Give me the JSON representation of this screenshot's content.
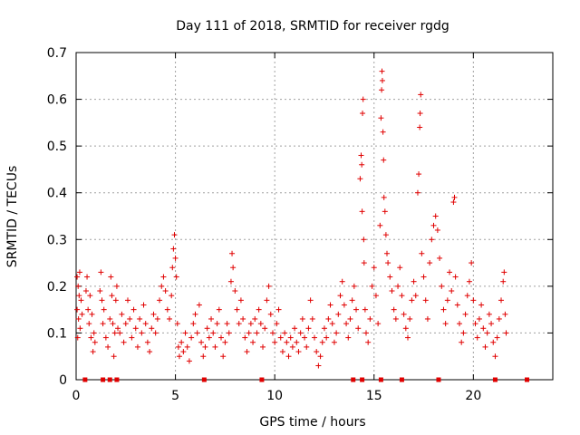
{
  "chart_data": {
    "type": "scatter",
    "title": "Day 111 of 2018, SRMTID for receiver rgdg",
    "xlabel": "GPS time / hours",
    "ylabel": "SRMTID / TECUs",
    "xlim": [
      0,
      24.0
    ],
    "ylim": [
      0,
      0.7
    ],
    "xticks": [
      0,
      5,
      10,
      15,
      20
    ],
    "xtick_labels": [
      "0",
      "5",
      "10",
      "15",
      "20"
    ],
    "yticks": [
      0,
      0.1,
      0.2,
      0.3,
      0.4,
      0.5,
      0.6,
      0.7
    ],
    "ytick_labels": [
      "0",
      "0.1",
      "0.2",
      "0.3",
      "0.4",
      "0.5",
      "0.6",
      "0.7"
    ],
    "grid": true,
    "marker": "+",
    "color": "#e00000",
    "series": [
      {
        "name": "SRMTID",
        "points": [
          [
            0.05,
            0.22
          ],
          [
            0.05,
            0.15
          ],
          [
            0.08,
            0.09
          ],
          [
            0.1,
            0.2
          ],
          [
            0.12,
            0.13
          ],
          [
            0.15,
            0.18
          ],
          [
            0.18,
            0.23
          ],
          [
            0.2,
            0.11
          ],
          [
            0.25,
            0.17
          ],
          [
            0.3,
            0.14
          ],
          [
            0.5,
            0.19
          ],
          [
            0.55,
            0.22
          ],
          [
            0.6,
            0.15
          ],
          [
            0.65,
            0.12
          ],
          [
            0.7,
            0.18
          ],
          [
            0.75,
            0.09
          ],
          [
            0.8,
            0.14
          ],
          [
            0.85,
            0.06
          ],
          [
            0.9,
            0.1
          ],
          [
            0.95,
            0.08
          ],
          [
            1.2,
            0.19
          ],
          [
            1.25,
            0.23
          ],
          [
            1.3,
            0.17
          ],
          [
            1.35,
            0.12
          ],
          [
            1.4,
            0.15
          ],
          [
            1.5,
            0.09
          ],
          [
            1.6,
            0.07
          ],
          [
            1.7,
            0.13
          ],
          [
            1.75,
            0.22
          ],
          [
            1.8,
            0.18
          ],
          [
            1.85,
            0.12
          ],
          [
            1.9,
            0.05
          ],
          [
            1.95,
            0.1
          ],
          [
            2.0,
            0.17
          ],
          [
            2.05,
            0.2
          ],
          [
            2.1,
            0.11
          ],
          [
            2.2,
            0.1
          ],
          [
            2.3,
            0.14
          ],
          [
            2.4,
            0.08
          ],
          [
            2.5,
            0.12
          ],
          [
            2.6,
            0.17
          ],
          [
            2.7,
            0.13
          ],
          [
            2.8,
            0.09
          ],
          [
            2.9,
            0.15
          ],
          [
            3.0,
            0.11
          ],
          [
            3.1,
            0.07
          ],
          [
            3.2,
            0.13
          ],
          [
            3.3,
            0.1
          ],
          [
            3.4,
            0.16
          ],
          [
            3.5,
            0.12
          ],
          [
            3.6,
            0.08
          ],
          [
            3.7,
            0.06
          ],
          [
            3.8,
            0.11
          ],
          [
            3.9,
            0.14
          ],
          [
            4.0,
            0.1
          ],
          [
            4.1,
            0.13
          ],
          [
            4.2,
            0.17
          ],
          [
            4.3,
            0.2
          ],
          [
            4.4,
            0.22
          ],
          [
            4.5,
            0.19
          ],
          [
            4.6,
            0.15
          ],
          [
            4.7,
            0.13
          ],
          [
            4.8,
            0.18
          ],
          [
            4.85,
            0.24
          ],
          [
            4.9,
            0.28
          ],
          [
            4.95,
            0.31
          ],
          [
            5.0,
            0.26
          ],
          [
            5.05,
            0.22
          ],
          [
            5.1,
            0.12
          ],
          [
            5.15,
            0.07
          ],
          [
            5.2,
            0.05
          ],
          [
            5.3,
            0.08
          ],
          [
            5.4,
            0.06
          ],
          [
            5.5,
            0.1
          ],
          [
            5.6,
            0.07
          ],
          [
            5.7,
            0.04
          ],
          [
            5.8,
            0.09
          ],
          [
            5.9,
            0.12
          ],
          [
            6.0,
            0.14
          ],
          [
            6.1,
            0.1
          ],
          [
            6.2,
            0.16
          ],
          [
            6.3,
            0.08
          ],
          [
            6.4,
            0.05
          ],
          [
            6.5,
            0.07
          ],
          [
            6.6,
            0.11
          ],
          [
            6.7,
            0.09
          ],
          [
            6.8,
            0.13
          ],
          [
            6.9,
            0.1
          ],
          [
            7.0,
            0.07
          ],
          [
            7.1,
            0.12
          ],
          [
            7.2,
            0.15
          ],
          [
            7.3,
            0.09
          ],
          [
            7.4,
            0.05
          ],
          [
            7.5,
            0.08
          ],
          [
            7.6,
            0.12
          ],
          [
            7.7,
            0.1
          ],
          [
            7.8,
            0.21
          ],
          [
            7.85,
            0.27
          ],
          [
            7.9,
            0.24
          ],
          [
            8.0,
            0.19
          ],
          [
            8.1,
            0.15
          ],
          [
            8.2,
            0.12
          ],
          [
            8.3,
            0.17
          ],
          [
            8.4,
            0.13
          ],
          [
            8.5,
            0.09
          ],
          [
            8.6,
            0.06
          ],
          [
            8.7,
            0.1
          ],
          [
            8.8,
            0.12
          ],
          [
            8.9,
            0.08
          ],
          [
            9.0,
            0.13
          ],
          [
            9.1,
            0.1
          ],
          [
            9.2,
            0.15
          ],
          [
            9.3,
            0.12
          ],
          [
            9.4,
            0.07
          ],
          [
            9.5,
            0.11
          ],
          [
            9.6,
            0.17
          ],
          [
            9.7,
            0.2
          ],
          [
            9.8,
            0.14
          ],
          [
            9.9,
            0.1
          ],
          [
            10.0,
            0.08
          ],
          [
            10.1,
            0.12
          ],
          [
            10.2,
            0.15
          ],
          [
            10.3,
            0.09
          ],
          [
            10.4,
            0.06
          ],
          [
            10.5,
            0.1
          ],
          [
            10.6,
            0.08
          ],
          [
            10.7,
            0.05
          ],
          [
            10.8,
            0.09
          ],
          [
            10.9,
            0.07
          ],
          [
            11.0,
            0.11
          ],
          [
            11.1,
            0.08
          ],
          [
            11.2,
            0.06
          ],
          [
            11.3,
            0.1
          ],
          [
            11.4,
            0.13
          ],
          [
            11.5,
            0.09
          ],
          [
            11.6,
            0.07
          ],
          [
            11.7,
            0.11
          ],
          [
            11.8,
            0.17
          ],
          [
            11.9,
            0.13
          ],
          [
            12.0,
            0.09
          ],
          [
            12.1,
            0.06
          ],
          [
            12.2,
            0.03
          ],
          [
            12.3,
            0.05
          ],
          [
            12.4,
            0.08
          ],
          [
            12.5,
            0.11
          ],
          [
            12.6,
            0.09
          ],
          [
            12.7,
            0.13
          ],
          [
            12.8,
            0.16
          ],
          [
            12.9,
            0.12
          ],
          [
            13.0,
            0.08
          ],
          [
            13.1,
            0.1
          ],
          [
            13.2,
            0.14
          ],
          [
            13.3,
            0.18
          ],
          [
            13.4,
            0.21
          ],
          [
            13.5,
            0.16
          ],
          [
            13.6,
            0.12
          ],
          [
            13.7,
            0.09
          ],
          [
            13.8,
            0.13
          ],
          [
            13.9,
            0.17
          ],
          [
            14.0,
            0.2
          ],
          [
            14.1,
            0.15
          ],
          [
            14.2,
            0.11
          ],
          [
            14.3,
            0.43
          ],
          [
            14.35,
            0.48
          ],
          [
            14.38,
            0.46
          ],
          [
            14.4,
            0.36
          ],
          [
            14.42,
            0.57
          ],
          [
            14.45,
            0.6
          ],
          [
            14.48,
            0.3
          ],
          [
            14.5,
            0.25
          ],
          [
            14.55,
            0.15
          ],
          [
            14.6,
            0.1
          ],
          [
            14.7,
            0.08
          ],
          [
            14.8,
            0.13
          ],
          [
            14.9,
            0.2
          ],
          [
            15.0,
            0.24
          ],
          [
            15.1,
            0.18
          ],
          [
            15.2,
            0.12
          ],
          [
            15.3,
            0.33
          ],
          [
            15.35,
            0.56
          ],
          [
            15.38,
            0.62
          ],
          [
            15.4,
            0.66
          ],
          [
            15.42,
            0.64
          ],
          [
            15.45,
            0.53
          ],
          [
            15.48,
            0.47
          ],
          [
            15.5,
            0.39
          ],
          [
            15.55,
            0.36
          ],
          [
            15.6,
            0.31
          ],
          [
            15.65,
            0.27
          ],
          [
            15.7,
            0.25
          ],
          [
            15.8,
            0.22
          ],
          [
            15.9,
            0.19
          ],
          [
            16.0,
            0.15
          ],
          [
            16.1,
            0.13
          ],
          [
            16.2,
            0.2
          ],
          [
            16.3,
            0.24
          ],
          [
            16.4,
            0.18
          ],
          [
            16.5,
            0.14
          ],
          [
            16.6,
            0.11
          ],
          [
            16.7,
            0.09
          ],
          [
            16.8,
            0.13
          ],
          [
            16.9,
            0.17
          ],
          [
            17.0,
            0.21
          ],
          [
            17.1,
            0.18
          ],
          [
            17.2,
            0.4
          ],
          [
            17.25,
            0.44
          ],
          [
            17.3,
            0.54
          ],
          [
            17.32,
            0.57
          ],
          [
            17.35,
            0.61
          ],
          [
            17.4,
            0.27
          ],
          [
            17.5,
            0.22
          ],
          [
            17.6,
            0.17
          ],
          [
            17.7,
            0.13
          ],
          [
            17.8,
            0.25
          ],
          [
            17.9,
            0.3
          ],
          [
            18.0,
            0.33
          ],
          [
            18.1,
            0.35
          ],
          [
            18.2,
            0.32
          ],
          [
            18.3,
            0.26
          ],
          [
            18.4,
            0.2
          ],
          [
            18.5,
            0.15
          ],
          [
            18.6,
            0.12
          ],
          [
            18.7,
            0.17
          ],
          [
            18.8,
            0.23
          ],
          [
            18.9,
            0.19
          ],
          [
            19.0,
            0.38
          ],
          [
            19.05,
            0.39
          ],
          [
            19.1,
            0.22
          ],
          [
            19.2,
            0.16
          ],
          [
            19.3,
            0.12
          ],
          [
            19.4,
            0.08
          ],
          [
            19.5,
            0.1
          ],
          [
            19.6,
            0.14
          ],
          [
            19.7,
            0.18
          ],
          [
            19.8,
            0.21
          ],
          [
            19.9,
            0.25
          ],
          [
            20.0,
            0.17
          ],
          [
            20.1,
            0.12
          ],
          [
            20.2,
            0.09
          ],
          [
            20.3,
            0.13
          ],
          [
            20.4,
            0.16
          ],
          [
            20.5,
            0.11
          ],
          [
            20.6,
            0.07
          ],
          [
            20.7,
            0.1
          ],
          [
            20.8,
            0.14
          ],
          [
            20.9,
            0.12
          ],
          [
            21.0,
            0.08
          ],
          [
            21.1,
            0.05
          ],
          [
            21.2,
            0.09
          ],
          [
            21.3,
            0.13
          ],
          [
            21.4,
            0.17
          ],
          [
            21.5,
            0.21
          ],
          [
            21.55,
            0.23
          ],
          [
            21.6,
            0.14
          ],
          [
            21.65,
            0.1
          ]
        ]
      }
    ],
    "gap_markers_x": [
      0.45,
      1.35,
      1.7,
      2.05,
      6.45,
      9.35,
      13.95,
      14.4,
      15.35,
      16.4,
      18.25,
      21.1,
      22.7
    ]
  }
}
